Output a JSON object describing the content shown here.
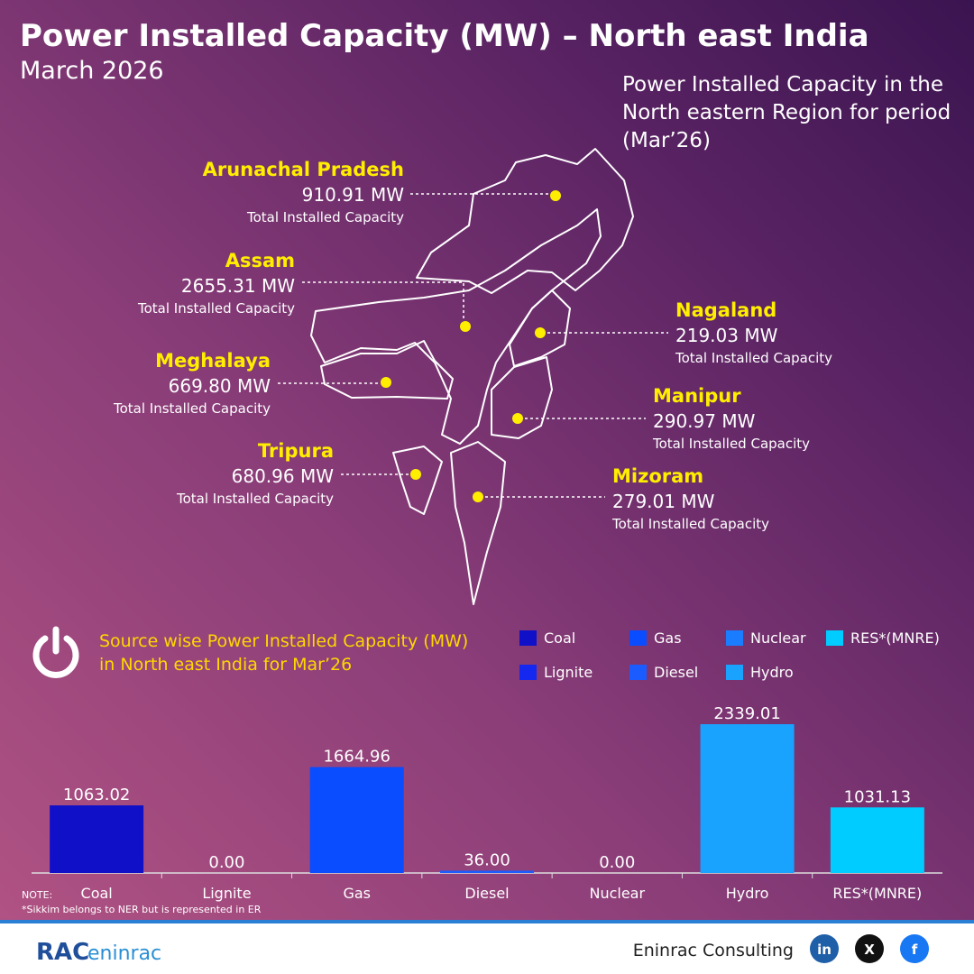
{
  "header": {
    "title": "Power Installed Capacity (MW) – North east India",
    "subtitle": "March 2026"
  },
  "map": {
    "description": "Power Installed Capacity in the\nNorth eastern Region for period\n(Mar’26)",
    "regions": [
      {
        "name": "Arunachal Pradesh",
        "capacity": "910.91 MW",
        "caption": "Total Installed Capacity"
      },
      {
        "name": "Assam",
        "capacity": "2655.31 MW",
        "caption": "Total Installed Capacity"
      },
      {
        "name": "Meghalaya",
        "capacity": "669.80 MW",
        "caption": "Total Installed Capacity"
      },
      {
        "name": "Tripura",
        "capacity": "680.96 MW",
        "caption": "Total Installed Capacity"
      },
      {
        "name": "Nagaland",
        "capacity": "219.03 MW",
        "caption": "Total Installed Capacity"
      },
      {
        "name": "Manipur",
        "capacity": "290.97 MW",
        "caption": "Total Installed Capacity"
      },
      {
        "name": "Mizoram",
        "capacity": "279.01 MW",
        "caption": "Total Installed Capacity"
      }
    ]
  },
  "chart_data": {
    "type": "bar",
    "title": "Source wise Power Installed Capacity (MW)\nin North east India for Mar’26",
    "categories": [
      "Coal",
      "Lignite",
      "Gas",
      "Diesel",
      "Nuclear",
      "Hydro",
      "RES*(MNRE)"
    ],
    "values": [
      1063.02,
      0,
      1664.96,
      36,
      0,
      2339.01,
      1031.13
    ],
    "value_labels": [
      "1063.02",
      "0.00",
      "1664.96",
      "36.00",
      "0.00",
      "2339.01",
      "1031.13"
    ],
    "colors": [
      "#1010c8",
      "#1428f0",
      "#0a4cff",
      "#1a5cff",
      "#1a7cff",
      "#1aa2ff",
      "#00ccff"
    ]
  },
  "note": {
    "label": "NOTE:",
    "text": "*Sikkim belongs to NER but is represented in ER"
  },
  "footer": {
    "logo_a": "RAC",
    "logo_b": "eninrac",
    "company": "Eninrac Consulting",
    "social": [
      "in",
      "X",
      "f"
    ]
  }
}
